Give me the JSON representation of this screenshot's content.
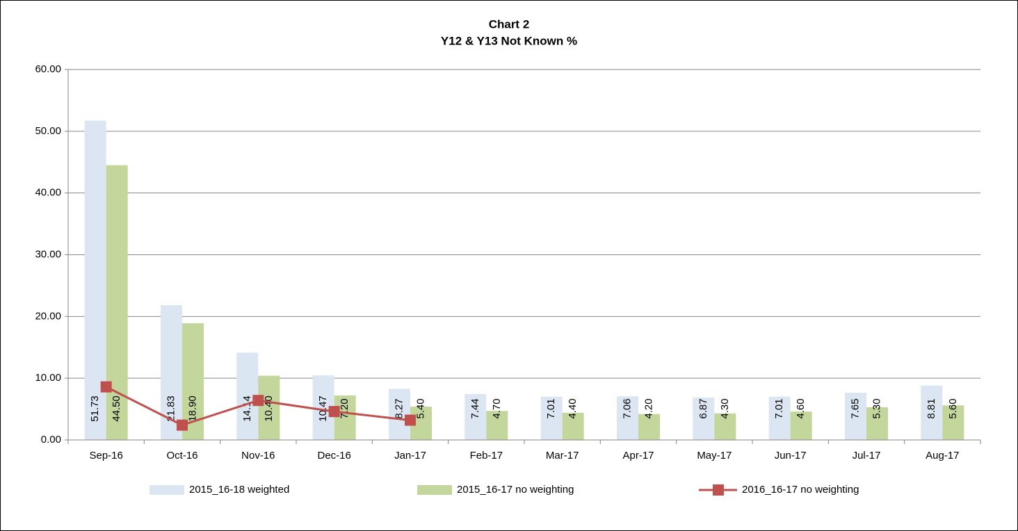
{
  "chart_data": {
    "type": "bar",
    "title": "Chart 2",
    "subtitle": "Y12 & Y13 Not Known %",
    "categories": [
      "Sep-16",
      "Oct-16",
      "Nov-16",
      "Dec-16",
      "Jan-17",
      "Feb-17",
      "Mar-17",
      "Apr-17",
      "May-17",
      "Jun-17",
      "Jul-17",
      "Aug-17"
    ],
    "series": [
      {
        "name": "2015_16-18 weighted",
        "type": "bar",
        "color": "#dce6f2",
        "values": [
          51.73,
          21.83,
          14.14,
          10.47,
          8.27,
          7.44,
          7.01,
          7.06,
          6.87,
          7.01,
          7.65,
          8.81
        ]
      },
      {
        "name": "2015_16-17 no weighting",
        "type": "bar",
        "color": "#c3d69b",
        "values": [
          44.5,
          18.9,
          10.4,
          7.2,
          5.4,
          4.7,
          4.4,
          4.2,
          4.3,
          4.6,
          5.3,
          5.6
        ],
        "value_labels": [
          "44.50",
          "18.90",
          "10.40",
          "7.20",
          "5.40",
          "4.70",
          "4.40",
          "4.20",
          "4.30",
          "4.60",
          "5.30",
          "5.60"
        ]
      },
      {
        "name": "2016_16-17 no weighting",
        "type": "line",
        "color": "#c0504d",
        "values": [
          8.6,
          2.4,
          6.4,
          4.6,
          3.2,
          null,
          null,
          null,
          null,
          null,
          null,
          null
        ]
      }
    ],
    "ylim": [
      0,
      60
    ],
    "yticks": [
      {
        "value": 0,
        "label": "0.00"
      },
      {
        "value": 10,
        "label": "10.00"
      },
      {
        "value": 20,
        "label": "20.00"
      },
      {
        "value": 30,
        "label": "30.00"
      },
      {
        "value": 40,
        "label": "40.00"
      },
      {
        "value": 50,
        "label": "50.00"
      },
      {
        "value": 60,
        "label": "60.00"
      }
    ],
    "grid": true,
    "legend": "bottom"
  }
}
